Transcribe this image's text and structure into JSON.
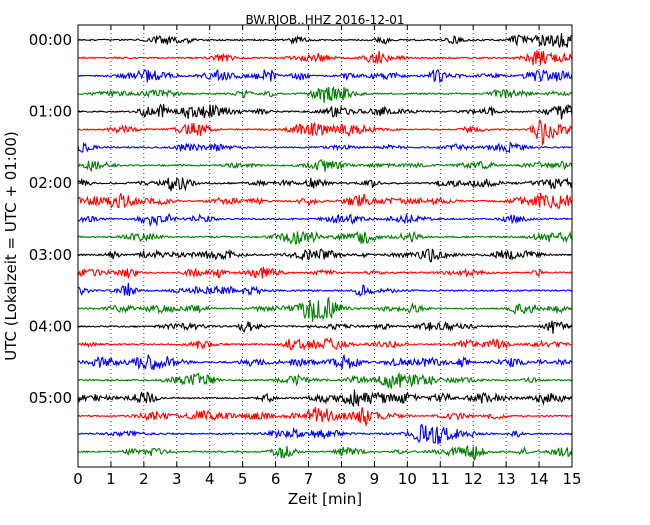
{
  "chart_data": {
    "type": "line",
    "title": "BW.RJOB..HHZ 2016-12-01",
    "xlabel": "Zeit  [min]",
    "ylabel": "UTC (Lokalzeit = UTC + 01:00)",
    "xlim": [
      0,
      15
    ],
    "x_ticks": [
      0,
      1,
      2,
      3,
      4,
      5,
      6,
      7,
      8,
      9,
      10,
      11,
      12,
      13,
      14,
      15
    ],
    "x_tick_labels": [
      "0",
      "1",
      "2",
      "3",
      "4",
      "5",
      "6",
      "7",
      "8",
      "9",
      "10",
      "11",
      "12",
      "13",
      "14",
      "15"
    ],
    "minutes_per_trace": 15,
    "hour_labels": [
      {
        "label": "00:00",
        "trace": 0
      },
      {
        "label": "01:00",
        "trace": 4
      },
      {
        "label": "02:00",
        "trace": 8
      },
      {
        "label": "03:00",
        "trace": 12
      },
      {
        "label": "04:00",
        "trace": 16
      },
      {
        "label": "05:00",
        "trace": 20
      }
    ],
    "trace_count": 24,
    "trace_colors": [
      "#000000",
      "#ff0000",
      "#0000ff",
      "#008000"
    ],
    "vertical_grid": true,
    "grid_style": "dotted"
  }
}
